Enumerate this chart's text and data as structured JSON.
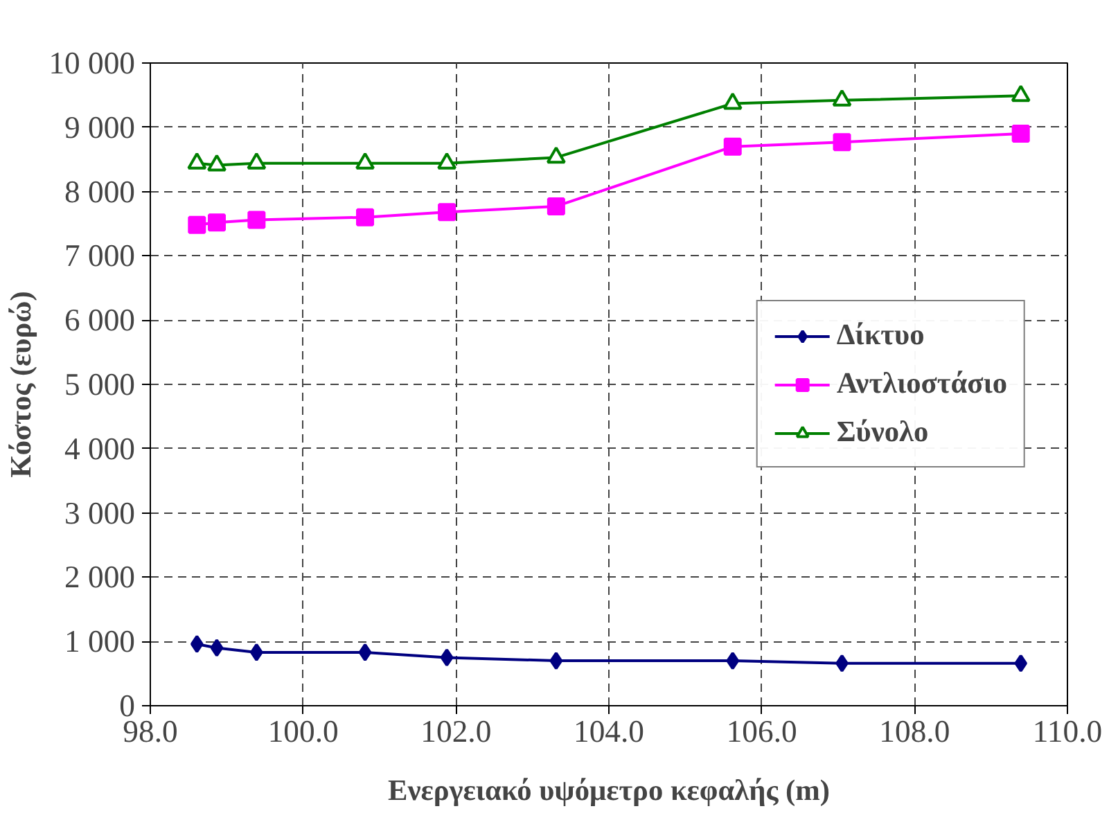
{
  "chart_data": {
    "type": "line",
    "xlabel": "Ενεργειακό υψόμετρο κεφαλής (m)",
    "ylabel": "Κόστος (ευρώ)",
    "x": [
      98.61,
      98.87,
      99.39,
      100.81,
      101.88,
      103.31,
      105.62,
      107.05,
      109.39
    ],
    "series": [
      {
        "name": "Δίκτυο",
        "color": "#000080",
        "marker": "diamond",
        "values": [
          960,
          900,
          830,
          830,
          750,
          700,
          700,
          660,
          660
        ]
      },
      {
        "name": "Αντλιοστάσιο",
        "color": "#ff00ff",
        "marker": "square",
        "values": [
          7480,
          7520,
          7560,
          7600,
          7680,
          7770,
          8700,
          8770,
          8900
        ]
      },
      {
        "name": "Σύνολο",
        "color": "#008000",
        "marker": "triangle",
        "values": [
          8440,
          8410,
          8440,
          8440,
          8440,
          8530,
          9370,
          9420,
          9490
        ]
      }
    ],
    "xlim": [
      98,
      110
    ],
    "xticks": [
      {
        "value": 98,
        "label": "98.0"
      },
      {
        "value": 100,
        "label": "100.0"
      },
      {
        "value": 102,
        "label": "102.0"
      },
      {
        "value": 104,
        "label": "104.0"
      },
      {
        "value": 106,
        "label": "106.0"
      },
      {
        "value": 108,
        "label": "108.0"
      },
      {
        "value": 110,
        "label": "110.0"
      }
    ],
    "ylim": [
      0,
      10000
    ],
    "yticks": [
      {
        "value": 0,
        "label": "0"
      },
      {
        "value": 1000,
        "label": "1 000"
      },
      {
        "value": 2000,
        "label": "2 000"
      },
      {
        "value": 3000,
        "label": "3 000"
      },
      {
        "value": 4000,
        "label": "4 000"
      },
      {
        "value": 5000,
        "label": "5 000"
      },
      {
        "value": 6000,
        "label": "6 000"
      },
      {
        "value": 7000,
        "label": "7 000"
      },
      {
        "value": 8000,
        "label": "8 000"
      },
      {
        "value": 9000,
        "label": "9 000"
      },
      {
        "value": 10000,
        "label": "10 000"
      }
    ],
    "grid": true,
    "legend": "right",
    "line_style": "solid"
  }
}
